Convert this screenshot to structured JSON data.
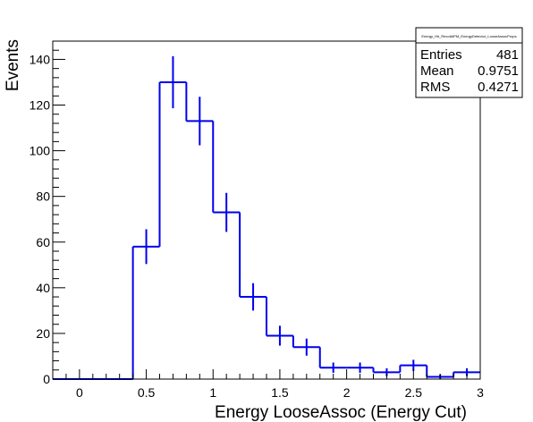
{
  "chart_data": {
    "type": "histogram",
    "xlabel": "Energy LooseAssoc (Energy Cut)",
    "ylabel": "Events",
    "xlim": [
      -0.2,
      3.0
    ],
    "ylim": [
      0,
      148
    ],
    "xticks": [
      0,
      0.5,
      1,
      1.5,
      2,
      2.5,
      3
    ],
    "xtick_labels": [
      "0",
      "0.5",
      "1",
      "1.5",
      "2",
      "2.5",
      "3"
    ],
    "yticks": [
      0,
      20,
      40,
      60,
      80,
      100,
      120,
      140
    ],
    "ytick_labels": [
      "0",
      "20",
      "40",
      "60",
      "80",
      "100",
      "120",
      "140"
    ],
    "grid": false,
    "bin_width": 0.2,
    "bins": [
      {
        "x_low": -0.2,
        "x_high": 0.0,
        "count": 0
      },
      {
        "x_low": 0.0,
        "x_high": 0.2,
        "count": 0
      },
      {
        "x_low": 0.2,
        "x_high": 0.4,
        "count": 0
      },
      {
        "x_low": 0.4,
        "x_high": 0.6,
        "count": 58
      },
      {
        "x_low": 0.6,
        "x_high": 0.8,
        "count": 130
      },
      {
        "x_low": 0.8,
        "x_high": 1.0,
        "count": 113
      },
      {
        "x_low": 1.0,
        "x_high": 1.2,
        "count": 73
      },
      {
        "x_low": 1.2,
        "x_high": 1.4,
        "count": 36
      },
      {
        "x_low": 1.4,
        "x_high": 1.6,
        "count": 19
      },
      {
        "x_low": 1.6,
        "x_high": 1.8,
        "count": 14
      },
      {
        "x_low": 1.8,
        "x_high": 2.0,
        "count": 5
      },
      {
        "x_low": 2.0,
        "x_high": 2.2,
        "count": 5
      },
      {
        "x_low": 2.2,
        "x_high": 2.4,
        "count": 3
      },
      {
        "x_low": 2.4,
        "x_high": 2.6,
        "count": 6
      },
      {
        "x_low": 2.6,
        "x_high": 2.8,
        "count": 1
      },
      {
        "x_low": 2.8,
        "x_high": 3.0,
        "count": 3
      }
    ],
    "line_color": "#0000ee",
    "stats_box": {
      "title": "Energy_Hit_RecoilAPM_EnergyDetector_LooseAssocProps",
      "rows": [
        {
          "label": "Entries",
          "value": "481"
        },
        {
          "label": "Mean",
          "value": "0.9751"
        },
        {
          "label": "RMS",
          "value": "0.4271"
        }
      ],
      "placement": "top-right"
    }
  }
}
